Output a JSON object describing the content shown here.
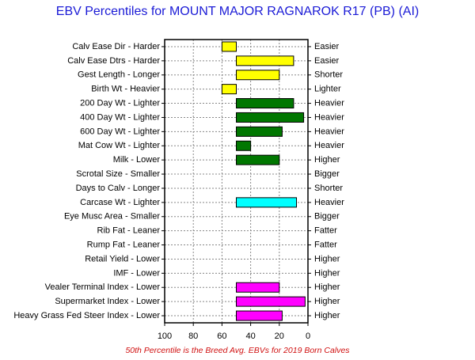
{
  "chart_data": {
    "type": "bar",
    "orientation": "horizontal",
    "title": "EBV Percentiles for MOUNT MAJOR RAGNAROK R17 (PB) (AI)",
    "note": "50th Percentile is the Breed Avg. EBVs for 2019 Born Calves",
    "base": 50,
    "categories": [
      "Calv Ease Dir - Harder",
      "Calv Ease Dtrs - Harder",
      "Gest Length - Longer",
      "Birth Wt - Heavier",
      "200 Day Wt - Lighter",
      "400 Day Wt - Lighter",
      "600 Day Wt - Lighter",
      "Mat Cow Wt - Lighter",
      "Milk - Lower",
      "Scrotal Size - Smaller",
      "Days to Calv - Longer",
      "Carcase Wt - Lighter",
      "Eye Musc Area - Smaller",
      "Rib Fat - Leaner",
      "Rump Fat - Leaner",
      "Retail Yield - Lower",
      "IMF - Lower",
      "Vealer Terminal Index - Lower",
      "Supermarket Index - Lower",
      "Heavy Grass Fed Steer Index - Lower"
    ],
    "right_labels": [
      "Easier",
      "Easier",
      "Shorter",
      "Lighter",
      "Heavier",
      "Heavier",
      "Heavier",
      "Heavier",
      "Higher",
      "Bigger",
      "Shorter",
      "Heavier",
      "Bigger",
      "Fatter",
      "Fatter",
      "Higher",
      "Higher",
      "Higher",
      "Higher",
      "Higher"
    ],
    "values": [
      60,
      10,
      20,
      60,
      10,
      3,
      18,
      40,
      20,
      null,
      null,
      8,
      null,
      null,
      null,
      null,
      null,
      20,
      2,
      18
    ],
    "colors": [
      "#ffff00",
      "#ffff00",
      "#ffff00",
      "#ffff00",
      "#007700",
      "#007700",
      "#007700",
      "#007700",
      "#007700",
      null,
      null,
      "#00ffff",
      null,
      null,
      null,
      null,
      null,
      "#ff00ff",
      "#ff00ff",
      "#ff00ff"
    ],
    "xlim": [
      100,
      0
    ],
    "xticks": [
      100,
      80,
      60,
      40,
      20,
      0
    ],
    "grid": true
  }
}
